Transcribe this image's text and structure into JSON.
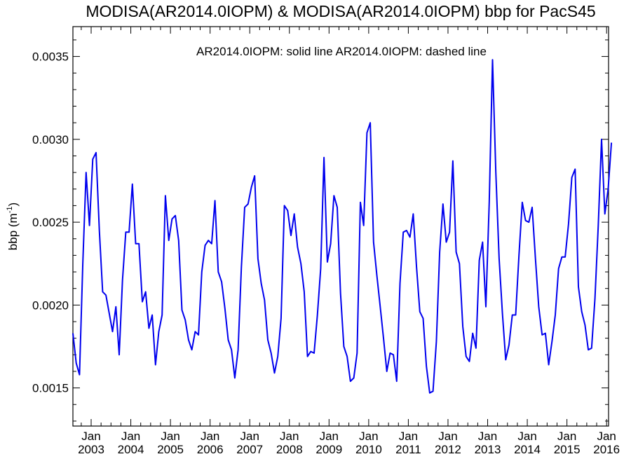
{
  "chart_data": {
    "type": "line",
    "title": "MODISA(AR2014.0IOPM) & MODISA(AR2014.0IOPM)  bbp for PacS45",
    "annotation": "AR2014.0IOPM: solid line   AR2014.0IOPM: dashed line",
    "ylabel": "bbp (m",
    "ylabel_sup": "-1",
    "ylabel_close": ")",
    "xlabel": "",
    "ylim": [
      0.00127,
      0.00368
    ],
    "xlim": [
      2002.54,
      2016.05
    ],
    "grid": false,
    "yticks": [
      {
        "value": 0.0015,
        "label": "0.0015"
      },
      {
        "value": 0.002,
        "label": "0.0020"
      },
      {
        "value": 0.0025,
        "label": "0.0025"
      },
      {
        "value": 0.003,
        "label": "0.0030"
      },
      {
        "value": 0.0035,
        "label": "0.0035"
      }
    ],
    "xticks": [
      {
        "value": 2003.0,
        "month": "Jan",
        "year": "2003"
      },
      {
        "value": 2004.0,
        "month": "Jan",
        "year": "2004"
      },
      {
        "value": 2005.0,
        "month": "Jan",
        "year": "2005"
      },
      {
        "value": 2006.0,
        "month": "Jan",
        "year": "2006"
      },
      {
        "value": 2007.0,
        "month": "Jan",
        "year": "2007"
      },
      {
        "value": 2008.0,
        "month": "Jan",
        "year": "2008"
      },
      {
        "value": 2009.0,
        "month": "Jan",
        "year": "2009"
      },
      {
        "value": 2010.0,
        "month": "Jan",
        "year": "2010"
      },
      {
        "value": 2011.0,
        "month": "Jan",
        "year": "2011"
      },
      {
        "value": 2012.0,
        "month": "Jan",
        "year": "2012"
      },
      {
        "value": 2013.0,
        "month": "Jan",
        "year": "2013"
      },
      {
        "value": 2014.0,
        "month": "Jan",
        "year": "2014"
      },
      {
        "value": 2015.0,
        "month": "Jan",
        "year": "2015"
      },
      {
        "value": 2016.0,
        "month": "Jan",
        "year": "2016"
      }
    ],
    "series": [
      {
        "style": "solid",
        "color": "#0000ee",
        "start": 2002.54,
        "step_years": 0.08333,
        "values": [
          0.00183,
          0.00165,
          0.00158,
          0.00225,
          0.0028,
          0.00248,
          0.00288,
          0.00292,
          0.00245,
          0.00208,
          0.00206,
          0.00195,
          0.00184,
          0.00199,
          0.0017,
          0.00215,
          0.00244,
          0.00244,
          0.00273,
          0.00237,
          0.00237,
          0.00202,
          0.00208,
          0.00186,
          0.00194,
          0.00164,
          0.00184,
          0.00194,
          0.00266,
          0.00239,
          0.00252,
          0.00254,
          0.00239,
          0.00197,
          0.00191,
          0.00179,
          0.00173,
          0.00184,
          0.00182,
          0.0022,
          0.00236,
          0.00239,
          0.00237,
          0.00263,
          0.0022,
          0.00214,
          0.00198,
          0.00179,
          0.00173,
          0.00156,
          0.00173,
          0.00223,
          0.00259,
          0.00261,
          0.00271,
          0.00278,
          0.00228,
          0.00213,
          0.00203,
          0.00179,
          0.00171,
          0.00159,
          0.00169,
          0.00192,
          0.0026,
          0.00257,
          0.00242,
          0.00255,
          0.00235,
          0.00225,
          0.00208,
          0.00169,
          0.00172,
          0.00171,
          0.00194,
          0.00222,
          0.00289,
          0.00226,
          0.00237,
          0.00266,
          0.00259,
          0.00207,
          0.00175,
          0.00169,
          0.00154,
          0.00156,
          0.00171,
          0.00262,
          0.00248,
          0.00304,
          0.0031,
          0.00238,
          0.00218,
          0.00199,
          0.0018,
          0.0016,
          0.00171,
          0.0017,
          0.00154,
          0.00213,
          0.00244,
          0.00245,
          0.00241,
          0.00255,
          0.00223,
          0.00196,
          0.00192,
          0.00163,
          0.00147,
          0.00148,
          0.00178,
          0.00232,
          0.00261,
          0.00238,
          0.00244,
          0.00287,
          0.00232,
          0.00225,
          0.00187,
          0.00169,
          0.00166,
          0.00183,
          0.00174,
          0.00227,
          0.00238,
          0.00199,
          0.00262,
          0.00348,
          0.0028,
          0.00228,
          0.00195,
          0.00167,
          0.00176,
          0.00194,
          0.00194,
          0.0023,
          0.00262,
          0.00251,
          0.0025,
          0.00259,
          0.00228,
          0.00199,
          0.00182,
          0.00183,
          0.00164,
          0.00178,
          0.00194,
          0.00222,
          0.00229,
          0.00229,
          0.00249,
          0.00277,
          0.00282,
          0.00211,
          0.00196,
          0.00188,
          0.00173,
          0.00174,
          0.00204,
          0.00248,
          0.003,
          0.00255,
          0.0027,
          0.00298
        ]
      }
    ]
  }
}
